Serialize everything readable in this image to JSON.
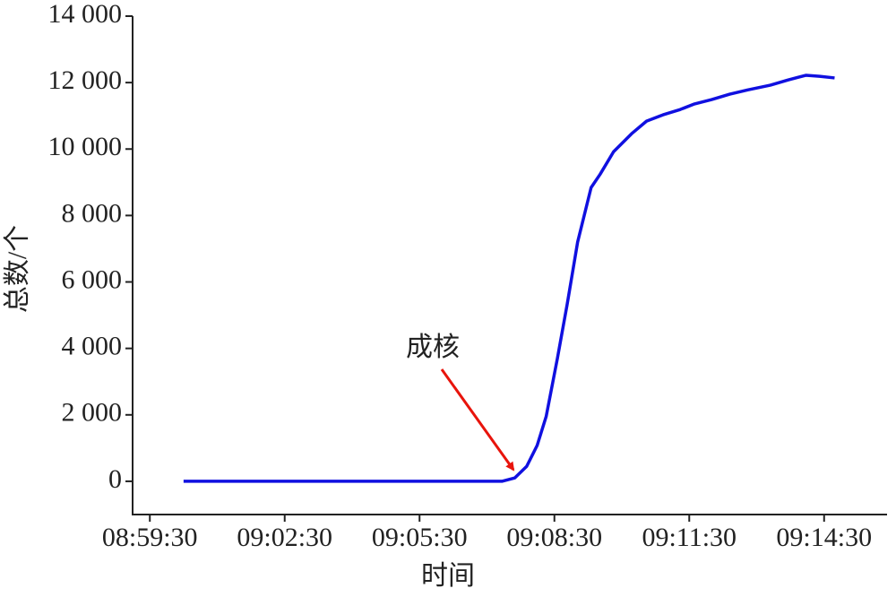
{
  "chart_data": {
    "type": "line",
    "x_label": "时间",
    "y_label": "总数/个",
    "annotation": "成核",
    "x": [
      "09:00:15",
      "09:07:20",
      "09:07:37",
      "09:07:53",
      "09:08:07",
      "09:08:19",
      "09:08:34",
      "09:08:47",
      "09:09:01",
      "09:09:19",
      "09:09:31",
      "09:09:49",
      "09:10:13",
      "09:10:33",
      "09:10:55",
      "09:11:18",
      "09:11:36",
      "09:12:00",
      "09:12:24",
      "09:12:48",
      "09:13:18",
      "09:13:42",
      "09:14:06",
      "09:14:24",
      "09:14:44"
    ],
    "series": [
      {
        "color": "#1010e0",
        "values": [
          0,
          0,
          100,
          450,
          1080,
          1950,
          3700,
          5320,
          7200,
          8840,
          9240,
          9920,
          10460,
          10840,
          11030,
          11190,
          11350,
          11490,
          11650,
          11780,
          11920,
          12080,
          12220,
          12190,
          12140
        ]
      }
    ],
    "xlim": [
      "08:59:07",
      "09:15:54"
    ],
    "xticks": [
      "08:59:30",
      "09:02:30",
      "09:05:30",
      "09:08:30",
      "09:11:30",
      "09:14:30"
    ],
    "ylim": [
      -1000,
      14000
    ],
    "yticks": [
      0,
      {
        "value": 2000,
        "label": "2 000"
      },
      {
        "value": 4000,
        "label": "4 000"
      },
      {
        "value": 6000,
        "label": "6 000"
      },
      {
        "value": 8000,
        "label": "8 000"
      },
      {
        "value": 10000,
        "label": "10 000"
      },
      {
        "value": 12000,
        "label": "12 000"
      },
      {
        "value": 14000,
        "label": "14 000"
      }
    ]
  }
}
